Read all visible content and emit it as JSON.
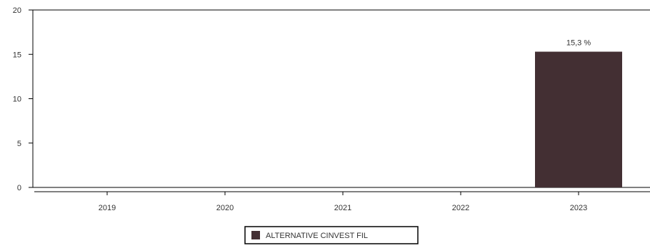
{
  "chart_data": {
    "type": "bar",
    "categories": [
      "2019",
      "2020",
      "2021",
      "2022",
      "2023"
    ],
    "series": [
      {
        "name": "ALTERNATIVE CINVEST FIL",
        "values": [
          null,
          null,
          null,
          null,
          15.3
        ],
        "data_labels": [
          "",
          "",
          "",
          "",
          "15,3 %"
        ],
        "color": "#432f33"
      }
    ],
    "ylim": [
      0,
      20
    ],
    "yticks": [
      0,
      5,
      10,
      15,
      20
    ],
    "xlabel": "",
    "ylabel": "",
    "title": "",
    "grid": false,
    "legend_position": "bottom-center"
  }
}
